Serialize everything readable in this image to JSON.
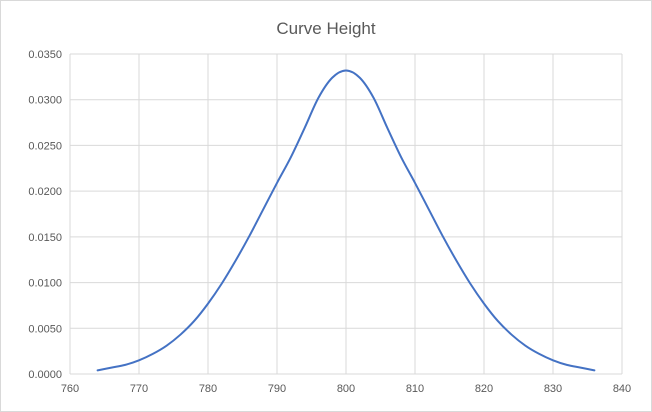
{
  "chart_data": {
    "type": "line",
    "title": "Curve Height",
    "xlabel": "",
    "ylabel": "",
    "xlim": [
      760,
      840
    ],
    "ylim": [
      0,
      0.035
    ],
    "x_ticks": [
      760,
      770,
      780,
      790,
      800,
      810,
      820,
      830,
      840
    ],
    "y_ticks": [
      0,
      0.005,
      0.01,
      0.015,
      0.02,
      0.025,
      0.03,
      0.035
    ],
    "x_tick_labels": [
      "760",
      "770",
      "780",
      "790",
      "800",
      "810",
      "820",
      "830",
      "840"
    ],
    "y_tick_labels": [
      "0.0000",
      "0.0050",
      "0.0100",
      "0.0150",
      "0.0200",
      "0.0250",
      "0.0300",
      "0.0350"
    ],
    "grid": true,
    "legend": "none",
    "line_color": "#4472c4",
    "grid_color": "#d9d9d9",
    "series": [
      {
        "x": [
          764,
          766,
          768,
          770,
          772,
          774,
          776,
          778,
          780,
          782,
          784,
          786,
          788,
          790,
          792,
          794,
          796,
          798,
          800,
          802,
          804,
          806,
          808,
          810,
          812,
          814,
          816,
          818,
          820,
          822,
          824,
          826,
          828,
          830,
          832,
          834,
          836
        ],
        "values": [
          0.0004,
          0.0007,
          0.001,
          0.0015,
          0.0022,
          0.0031,
          0.0043,
          0.0058,
          0.0077,
          0.0099,
          0.0124,
          0.0151,
          0.018,
          0.0209,
          0.0237,
          0.0269,
          0.0302,
          0.0324,
          0.0332,
          0.0324,
          0.0302,
          0.0269,
          0.0237,
          0.0209,
          0.018,
          0.0151,
          0.0124,
          0.0099,
          0.0077,
          0.0058,
          0.0043,
          0.0031,
          0.0022,
          0.0015,
          0.001,
          0.0007,
          0.0004
        ]
      }
    ]
  }
}
